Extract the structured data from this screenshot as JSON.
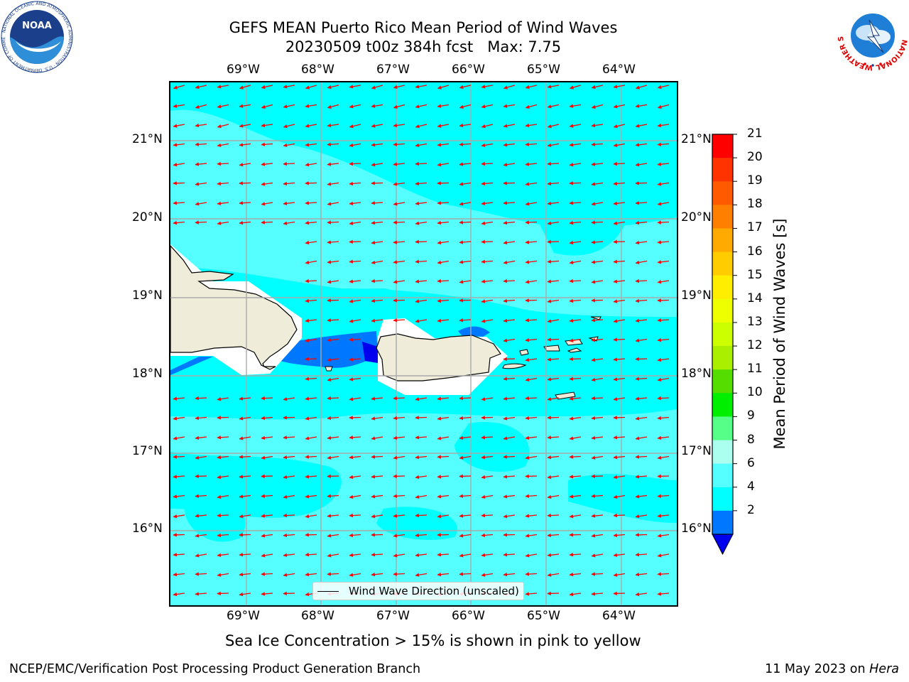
{
  "title": {
    "line1": "GEFS MEAN Puerto Rico Mean Period of Wind Waves",
    "line2": "20230509 t00z 384h fcst   Max: 7.75"
  },
  "axes": {
    "lon_labels": [
      "69°W",
      "68°W",
      "67°W",
      "66°W",
      "65°W",
      "64°W"
    ],
    "lat_labels": [
      "21°N",
      "20°N",
      "19°N",
      "18°N",
      "17°N",
      "16°N"
    ]
  },
  "legend": {
    "label": "Wind Wave Direction (unscaled)"
  },
  "colorbar": {
    "title": "Mean Period of Wind Waves [s]",
    "ticks": [
      "21",
      "20",
      "19",
      "18",
      "17",
      "16",
      "15",
      "14",
      "13",
      "12",
      "11",
      "10",
      "9",
      "8",
      "6",
      "4",
      "2"
    ],
    "colors": [
      "#ff0000",
      "#ff3300",
      "#ff5a00",
      "#ff8000",
      "#ffaa00",
      "#ffcc00",
      "#ffee00",
      "#eeff00",
      "#ccff00",
      "#aaee00",
      "#55dd00",
      "#00ee00",
      "#55ff88",
      "#aaffee",
      "#55ffff",
      "#00ffff",
      "#0077ff"
    ],
    "under_color": "#0000ee"
  },
  "note": "Sea Ice Concentration > 15% is shown in pink to yellow",
  "footer": {
    "left": "NCEP/EMC/Verification Post Processing Product Generation Branch",
    "date": "11 May 2023 on ",
    "host": "Hera"
  },
  "logos": {
    "noaa": {
      "text": "NOAA",
      "ring": "NATIONAL OCEANIC AND ATMOSPHERIC ADMINISTRATION · U.S. DEPARTMENT OF COMMERCE"
    },
    "nws": {
      "ring": "NATIONAL WEATHER SERVICE"
    }
  },
  "colors": {
    "ocean_base": "#00ffff",
    "ocean_light": "#55ffff",
    "ocean_blue": "#0077ff",
    "ocean_dark": "#0000ee",
    "land": "#efedda",
    "arrow": "#ff0000",
    "grid": "#aaaaaa"
  }
}
